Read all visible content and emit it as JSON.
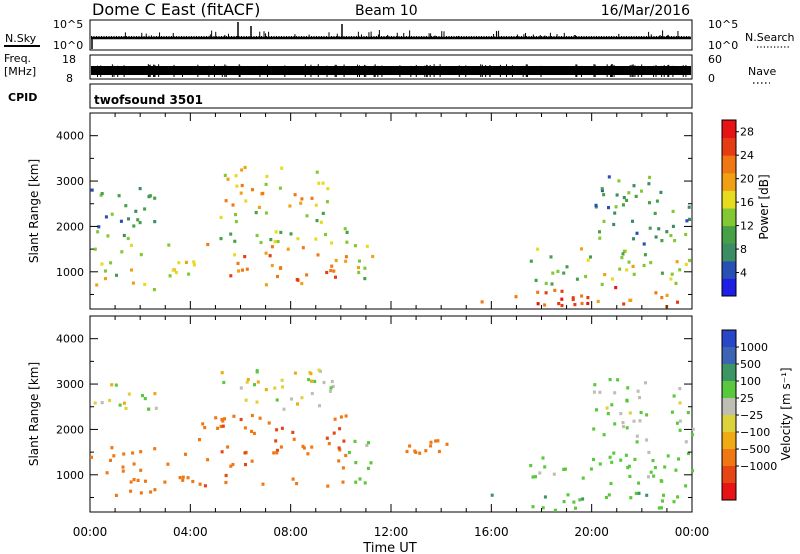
{
  "header": {
    "station": "Dome C East (fitACF)",
    "beam": "Beam 10",
    "date": "16/Mar/2016"
  },
  "top_panels": {
    "nsky_label": "N.Sky",
    "nsky_ticks": [
      "10^5",
      "10^0"
    ],
    "nsearch_label": "N.Search",
    "nsearch_ticks": [
      "10^5",
      "10^0"
    ],
    "freq_label": "Freq.",
    "freq_unit": "[MHz]",
    "freq_ticks": [
      "18",
      "8"
    ],
    "nave_label": "Nave",
    "nave_ticks": [
      "60",
      "0"
    ],
    "cpid_label": "CPID",
    "cpid_value": "twofsound 3501"
  },
  "colors": {
    "power_scale": [
      "#1e1ee6",
      "#2850b4",
      "#3c8c64",
      "#46a046",
      "#82c832",
      "#e6dc1e",
      "#f0a014",
      "#f07814",
      "#e63c14",
      "#e61414"
    ],
    "velocity_scale": [
      "#e61414",
      "#e64614",
      "#f07814",
      "#f0aa14",
      "#dcd23c",
      "#bebeb4",
      "#5ac83c",
      "#3c9664",
      "#3c64b4",
      "#2846c8"
    ]
  },
  "chart_data": [
    {
      "type": "heatmap",
      "title": "Power",
      "xlabel": "Time UT",
      "ylabel": "Slant Range [km]",
      "x_ticks": [
        "00:00",
        "04:00",
        "08:00",
        "12:00",
        "16:00",
        "20:00",
        "00:00"
      ],
      "xlim": [
        0,
        24
      ],
      "y_ticks": [
        1000,
        2000,
        3000,
        4000
      ],
      "ylim": [
        180,
        4500
      ],
      "colorbar_label": "Power [dB]",
      "colorbar_ticks": [
        4,
        8,
        12,
        16,
        20,
        24,
        28
      ],
      "colorbar_range": [
        0,
        30
      ],
      "regions": [
        {
          "t0": 0.0,
          "t1": 2.6,
          "r0": 500,
          "r1": 1600,
          "level": 16
        },
        {
          "t0": 0.0,
          "t1": 2.6,
          "r0": 1700,
          "r1": 2900,
          "level": 10
        },
        {
          "t0": 2.6,
          "t1": 4.2,
          "r0": 800,
          "r1": 1600,
          "level": 14
        },
        {
          "t0": 4.2,
          "t1": 10.2,
          "r0": 700,
          "r1": 1600,
          "level": 22
        },
        {
          "t0": 5.0,
          "t1": 10.2,
          "r0": 1600,
          "r1": 2300,
          "level": 14
        },
        {
          "t0": 5.2,
          "t1": 9.8,
          "r0": 2400,
          "r1": 3300,
          "level": 18
        },
        {
          "t0": 10.2,
          "t1": 11.3,
          "r0": 800,
          "r1": 1800,
          "level": 14
        },
        {
          "t0": 15.5,
          "t1": 23.5,
          "r0": 200,
          "r1": 650,
          "level": 24
        },
        {
          "t0": 17.5,
          "t1": 24.0,
          "r0": 700,
          "r1": 1500,
          "level": 14
        },
        {
          "t0": 20.0,
          "t1": 24.0,
          "r0": 1600,
          "r1": 3100,
          "level": 10
        }
      ]
    },
    {
      "type": "heatmap",
      "title": "Velocity",
      "xlabel": "Time UT",
      "ylabel": "Slant Range [km]",
      "x_ticks": [
        "00:00",
        "04:00",
        "08:00",
        "12:00",
        "16:00",
        "20:00",
        "00:00"
      ],
      "xlim": [
        0,
        24
      ],
      "y_ticks": [
        1000,
        2000,
        3000,
        4000
      ],
      "ylim": [
        180,
        4500
      ],
      "colorbar_label": "Velocity [m s⁻¹]",
      "colorbar_ticks": [
        "1000",
        "500",
        "100",
        "25",
        "−25",
        "−100",
        "−500",
        "−1000"
      ],
      "regions": [
        {
          "t0": 0.0,
          "t1": 2.6,
          "r0": 500,
          "r1": 1600,
          "level": -200
        },
        {
          "t0": 0.0,
          "t1": 2.6,
          "r0": 2300,
          "r1": 3000,
          "level": 0
        },
        {
          "t0": 2.6,
          "t1": 4.2,
          "r0": 800,
          "r1": 1600,
          "level": -300
        },
        {
          "t0": 4.2,
          "t1": 10.2,
          "r0": 700,
          "r1": 2300,
          "level": -400
        },
        {
          "t0": 5.2,
          "t1": 9.8,
          "r0": 2400,
          "r1": 3300,
          "level": 0
        },
        {
          "t0": 10.2,
          "t1": 11.3,
          "r0": 800,
          "r1": 1800,
          "level": 50
        },
        {
          "t0": 12.5,
          "t1": 14.5,
          "r0": 1300,
          "r1": 1900,
          "level": -300
        },
        {
          "t0": 15.5,
          "t1": 23.5,
          "r0": 200,
          "r1": 650,
          "level": 80
        },
        {
          "t0": 16.3,
          "t1": 19.5,
          "r0": 1000,
          "r1": 1150,
          "level": 0
        },
        {
          "t0": 17.5,
          "t1": 24.0,
          "r0": 700,
          "r1": 1500,
          "level": 60
        },
        {
          "t0": 20.0,
          "t1": 24.0,
          "r0": 1600,
          "r1": 3100,
          "level": 30
        }
      ]
    }
  ]
}
